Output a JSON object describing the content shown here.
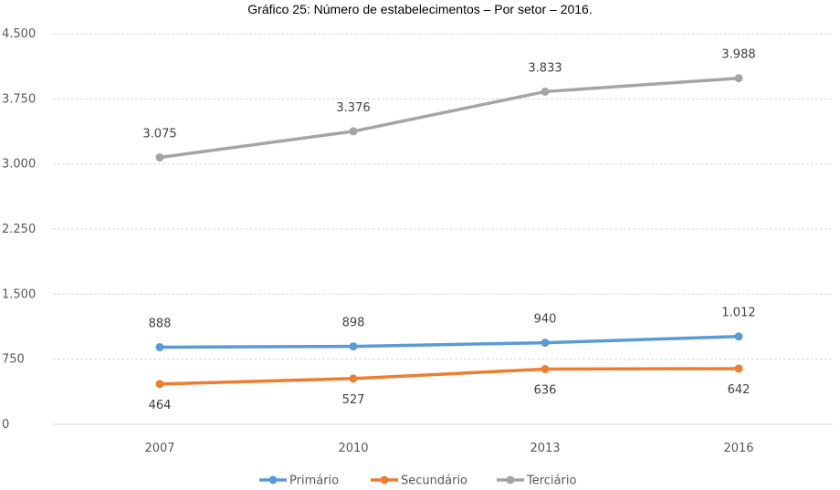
{
  "chart_data": {
    "type": "line",
    "title": "Gráfico 25: Número de estabelecimentos – Por setor – 2016.",
    "categories": [
      "2007",
      "2010",
      "2013",
      "2016"
    ],
    "series": [
      {
        "name": "Primário",
        "color": "#5B9BD5",
        "values": [
          888,
          898,
          940,
          1012
        ],
        "labels": [
          "888",
          "898",
          "940",
          "1.012"
        ],
        "label_position": "above"
      },
      {
        "name": "Secundário",
        "color": "#ED7D31",
        "values": [
          464,
          527,
          636,
          642
        ],
        "labels": [
          "464",
          "527",
          "636",
          "642"
        ],
        "label_position": "below"
      },
      {
        "name": "Terciário",
        "color": "#A5A5A5",
        "values": [
          3075,
          3376,
          3833,
          3988
        ],
        "labels": [
          "3.075",
          "3.376",
          "3.833",
          "3.988"
        ],
        "label_position": "above"
      }
    ],
    "ylim": [
      0,
      4500
    ],
    "yticks": [
      0,
      750,
      1500,
      2250,
      3000,
      3750,
      4500
    ],
    "ytick_labels": [
      "0",
      "750",
      "1.500",
      "2.250",
      "3.000",
      "3.750",
      "4.500"
    ],
    "grid": true,
    "legend": "bottom",
    "xlabel": "",
    "ylabel": ""
  }
}
